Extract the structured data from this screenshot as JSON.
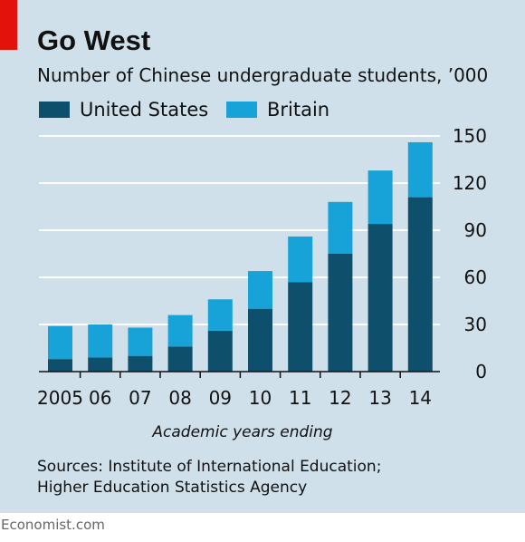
{
  "chart_data": {
    "type": "bar",
    "stacked": true,
    "title": "Go West",
    "subtitle": "Number of Chinese undergraduate students, ’000",
    "categories": [
      "2005",
      "06",
      "07",
      "08",
      "09",
      "10",
      "11",
      "12",
      "13",
      "14"
    ],
    "series": [
      {
        "name": "United States",
        "color": "#0e4f6b",
        "values": [
          8,
          9,
          10,
          16,
          26,
          40,
          57,
          75,
          94,
          111
        ]
      },
      {
        "name": "Britain",
        "color": "#17a3d8",
        "values": [
          21,
          21,
          18,
          20,
          20,
          24,
          29,
          33,
          34,
          35
        ]
      }
    ],
    "xlabel": "Academic years ending",
    "ylabel": "",
    "ylim": [
      0,
      150
    ],
    "yticks": [
      "0",
      "30",
      "60",
      "90",
      "120",
      "150"
    ],
    "ytick_values": [
      0,
      30,
      60,
      90,
      120,
      150
    ],
    "grid": true,
    "legend_position": "top-left",
    "colors": {
      "background": "#cfe0ea",
      "grid": "#ffffff",
      "axis": "#111111",
      "accent": "#e3120b"
    }
  },
  "source": {
    "line1": "Sources: Institute of International Education;",
    "line2": "Higher Education Statistics Agency"
  },
  "footer": "Economist.com"
}
